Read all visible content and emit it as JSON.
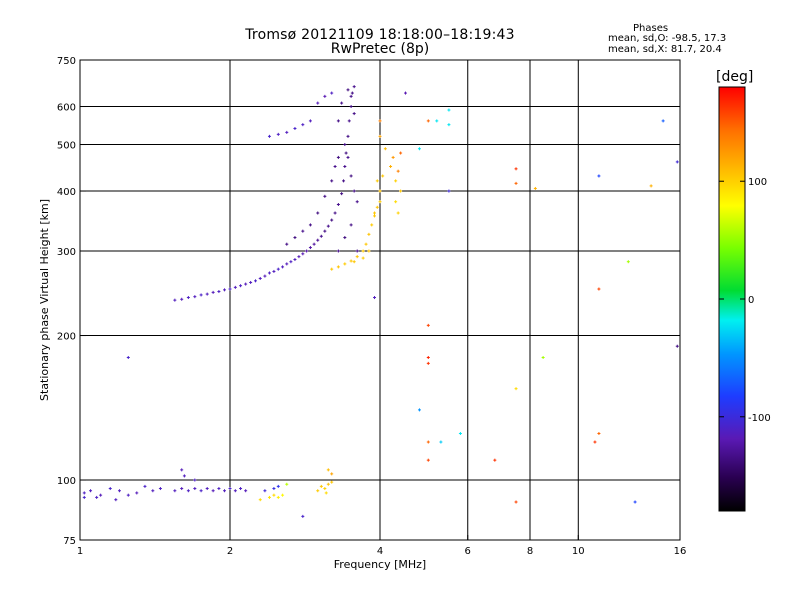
{
  "header": {
    "title_line1": "Tromsø 20121109 18:18:00–18:19:43",
    "title_line2": "RwPretec (8p)",
    "phases_heading": "Phases",
    "phases_o": "mean, sd,O: -98.5, 17.3",
    "phases_x": "mean, sd,X:  81.7, 20.4"
  },
  "chart_data": {
    "type": "scatter",
    "title": "Tromsø 20121109 18:18:00–18:19:43",
    "subtitle": "RwPretec (8p)",
    "xlabel": "Frequency [MHz]",
    "ylabel": "Stationary phase Virtual Height [km]",
    "xscale": "log",
    "yscale": "log",
    "xlim": [
      1,
      16
    ],
    "ylim": [
      75,
      750
    ],
    "xticks": [
      1,
      2,
      4,
      6,
      8,
      10,
      16
    ],
    "yticks": [
      75,
      100,
      200,
      300,
      400,
      500,
      600,
      750
    ],
    "grid": true,
    "colorbar": {
      "label": "[deg]",
      "range": [
        -180,
        180
      ],
      "ticks": [
        -100,
        0,
        100
      ],
      "colors": [
        "#000000",
        "#2a0052",
        "#5a19b4",
        "#1e3cff",
        "#0096ff",
        "#00f0f0",
        "#00dc32",
        "#78ff00",
        "#ffff00",
        "#ffbe00",
        "#ff6e00",
        "#ff0000"
      ]
    },
    "series": [
      {
        "points": [
          [
            1.02,
            94,
            -108
          ],
          [
            1.05,
            95,
            -110
          ],
          [
            1.1,
            93,
            -112
          ],
          [
            1.15,
            96,
            -105
          ],
          [
            1.2,
            95,
            -110
          ],
          [
            1.25,
            93,
            -108
          ],
          [
            1.3,
            94,
            -112
          ],
          [
            1.35,
            97,
            -106
          ],
          [
            1.4,
            95,
            -110
          ],
          [
            1.45,
            96,
            -108
          ],
          [
            1.55,
            95,
            -110
          ],
          [
            1.6,
            96,
            -112
          ],
          [
            1.65,
            95,
            -108
          ],
          [
            1.7,
            96,
            -110
          ],
          [
            1.75,
            95,
            -106
          ],
          [
            1.8,
            96,
            -110
          ],
          [
            1.85,
            95,
            -112
          ],
          [
            1.9,
            96,
            -108
          ],
          [
            1.95,
            95,
            -110
          ],
          [
            2.0,
            96,
            -106
          ],
          [
            2.05,
            95,
            -110
          ],
          [
            2.1,
            96,
            -108
          ],
          [
            2.15,
            95,
            -112
          ],
          [
            1.6,
            105,
            -112
          ],
          [
            1.62,
            102,
            -110
          ],
          [
            1.7,
            100,
            -108
          ],
          [
            1.25,
            180,
            -105
          ],
          [
            1.02,
            92,
            -104
          ],
          [
            1.08,
            92,
            -108
          ],
          [
            1.18,
            91,
            -110
          ],
          [
            2.35,
            95,
            -100
          ],
          [
            2.45,
            96,
            -95
          ],
          [
            2.5,
            97,
            -90
          ],
          [
            2.4,
            92,
            95
          ],
          [
            2.45,
            93,
            100
          ],
          [
            2.5,
            92,
            90
          ],
          [
            2.3,
            91,
            100
          ],
          [
            2.55,
            93,
            85
          ],
          [
            3.05,
            97,
            110
          ],
          [
            3.1,
            96,
            105
          ],
          [
            3.15,
            98,
            112
          ],
          [
            3.2,
            99,
            110
          ],
          [
            3.0,
            95,
            108
          ],
          [
            3.12,
            94,
            100
          ],
          [
            3.2,
            103,
            125
          ],
          [
            3.15,
            105,
            115
          ],
          [
            2.6,
            98,
            65
          ],
          [
            2.8,
            84,
            -105
          ],
          [
            1.55,
            237,
            -110
          ],
          [
            1.6,
            238,
            -112
          ],
          [
            1.65,
            240,
            -108
          ],
          [
            1.7,
            241,
            -110
          ],
          [
            1.75,
            243,
            -106
          ],
          [
            1.8,
            244,
            -110
          ],
          [
            1.85,
            246,
            -112
          ],
          [
            1.9,
            247,
            -108
          ],
          [
            1.95,
            249,
            -110
          ],
          [
            2.0,
            250,
            -106
          ],
          [
            2.05,
            252,
            -110
          ],
          [
            2.1,
            254,
            -108
          ],
          [
            2.15,
            256,
            -112
          ],
          [
            2.2,
            258,
            -110
          ],
          [
            2.25,
            260,
            -106
          ],
          [
            2.3,
            263,
            -110
          ],
          [
            2.35,
            266,
            -112
          ],
          [
            2.4,
            270,
            -108
          ],
          [
            2.45,
            272,
            -110
          ],
          [
            2.5,
            275,
            -106
          ],
          [
            2.55,
            278,
            -110
          ],
          [
            2.6,
            282,
            -112
          ],
          [
            2.65,
            285,
            -108
          ],
          [
            2.7,
            288,
            -110
          ],
          [
            2.75,
            292,
            -112
          ],
          [
            2.8,
            296,
            -115
          ],
          [
            2.85,
            300,
            -118
          ],
          [
            2.9,
            305,
            -120
          ],
          [
            2.95,
            310,
            -122
          ],
          [
            3.0,
            316,
            -125
          ],
          [
            3.05,
            322,
            -128
          ],
          [
            3.1,
            330,
            -130
          ],
          [
            3.15,
            338,
            -128
          ],
          [
            3.2,
            348,
            -132
          ],
          [
            3.25,
            360,
            -130
          ],
          [
            3.3,
            375,
            -128
          ],
          [
            3.35,
            395,
            -132
          ],
          [
            3.38,
            420,
            -130
          ],
          [
            3.4,
            450,
            -128
          ],
          [
            3.42,
            480,
            -132
          ],
          [
            3.45,
            520,
            -130
          ],
          [
            3.47,
            560,
            -128
          ],
          [
            3.5,
            600,
            -132
          ],
          [
            3.52,
            640,
            -130
          ],
          [
            3.55,
            660,
            -128
          ],
          [
            3.3,
            560,
            -130
          ],
          [
            3.35,
            610,
            -128
          ],
          [
            3.45,
            650,
            -132
          ],
          [
            3.5,
            630,
            -128
          ],
          [
            3.55,
            580,
            -130
          ],
          [
            3.2,
            420,
            -130
          ],
          [
            3.25,
            450,
            -128
          ],
          [
            3.3,
            470,
            -132
          ],
          [
            3.4,
            500,
            -130
          ],
          [
            3.45,
            470,
            -128
          ],
          [
            3.5,
            430,
            -132
          ],
          [
            3.55,
            400,
            -130
          ],
          [
            3.6,
            380,
            -128
          ],
          [
            3.1,
            390,
            -130
          ],
          [
            3.0,
            360,
            -132
          ],
          [
            2.9,
            340,
            -130
          ],
          [
            2.8,
            330,
            -128
          ],
          [
            2.7,
            320,
            -132
          ],
          [
            2.6,
            310,
            -130
          ],
          [
            3.3,
            300,
            -128
          ],
          [
            3.4,
            320,
            -132
          ],
          [
            3.5,
            340,
            -130
          ],
          [
            3.6,
            300,
            -128
          ],
          [
            2.4,
            520,
            -105
          ],
          [
            2.5,
            525,
            -108
          ],
          [
            2.6,
            530,
            -110
          ],
          [
            2.7,
            540,
            -105
          ],
          [
            2.8,
            550,
            -108
          ],
          [
            2.9,
            560,
            -110
          ],
          [
            3.0,
            610,
            -112
          ],
          [
            3.1,
            630,
            -115
          ],
          [
            3.2,
            640,
            -108
          ],
          [
            3.2,
            275,
            110
          ],
          [
            3.3,
            278,
            112
          ],
          [
            3.4,
            282,
            108
          ],
          [
            3.5,
            286,
            110
          ],
          [
            3.6,
            292,
            112
          ],
          [
            3.7,
            300,
            108
          ],
          [
            3.75,
            310,
            110
          ],
          [
            3.8,
            325,
            112
          ],
          [
            3.85,
            340,
            108
          ],
          [
            3.9,
            355,
            110
          ],
          [
            3.95,
            370,
            112
          ],
          [
            4.0,
            380,
            108
          ],
          [
            3.9,
            360,
            110
          ],
          [
            4.0,
            400,
            112
          ],
          [
            3.95,
            420,
            108
          ],
          [
            4.05,
            430,
            110
          ],
          [
            3.8,
            300,
            112
          ],
          [
            3.7,
            290,
            108
          ],
          [
            3.55,
            285,
            110
          ],
          [
            4.3,
            380,
            100
          ],
          [
            4.35,
            360,
            105
          ],
          [
            4.4,
            400,
            110
          ],
          [
            4.3,
            420,
            105
          ],
          [
            4.2,
            450,
            120
          ],
          [
            4.25,
            470,
            130
          ],
          [
            4.1,
            490,
            115
          ],
          [
            4.0,
            520,
            125
          ],
          [
            4.0,
            560,
            140
          ],
          [
            4.4,
            480,
            150
          ],
          [
            4.35,
            440,
            140
          ],
          [
            3.9,
            240,
            -110
          ],
          [
            4.5,
            640,
            -115
          ],
          [
            5.0,
            560,
            150
          ],
          [
            5.2,
            560,
            -20
          ],
          [
            5.5,
            590,
            -20
          ],
          [
            5.5,
            550,
            -20
          ],
          [
            5.5,
            400,
            -100
          ],
          [
            4.8,
            490,
            -20
          ],
          [
            5.0,
            210,
            160
          ],
          [
            5.0,
            180,
            170
          ],
          [
            5.0,
            175,
            165
          ],
          [
            4.8,
            140,
            -50
          ],
          [
            5.0,
            120,
            150
          ],
          [
            5.0,
            110,
            160
          ],
          [
            5.3,
            120,
            -30
          ],
          [
            5.8,
            125,
            -20
          ],
          [
            6.8,
            110,
            165
          ],
          [
            7.5,
            445,
            165
          ],
          [
            7.5,
            415,
            150
          ],
          [
            8.2,
            405,
            120
          ],
          [
            7.5,
            155,
            100
          ],
          [
            8.5,
            180,
            60
          ],
          [
            7.5,
            90,
            160
          ],
          [
            11,
            430,
            -80
          ],
          [
            11,
            250,
            160
          ],
          [
            11,
            125,
            150
          ],
          [
            10.8,
            120,
            165
          ],
          [
            12.6,
            285,
            60
          ],
          [
            13,
            90,
            -80
          ],
          [
            14,
            410,
            120
          ],
          [
            14.8,
            560,
            -70
          ],
          [
            15.8,
            190,
            -130
          ],
          [
            15.8,
            460,
            -100
          ]
        ]
      }
    ]
  }
}
